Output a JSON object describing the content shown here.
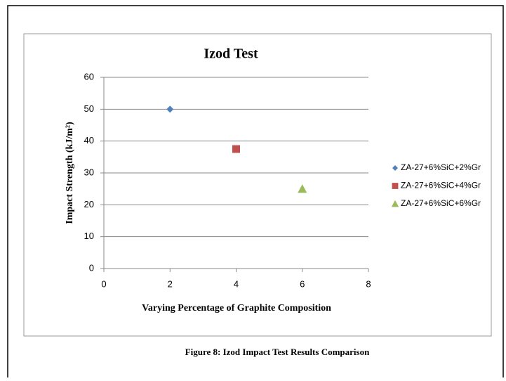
{
  "chart_data": {
    "type": "scatter",
    "title": "Izod Test",
    "xlabel": "Varying Percentage of Graphite Composition",
    "ylabel": "Impact Strength (kJ/m²)",
    "caption": "Figure 8: Izod Impact Test Results Comparison",
    "xlim": [
      0,
      8
    ],
    "xticks": [
      0,
      2,
      4,
      6,
      8
    ],
    "ylim": [
      0,
      60
    ],
    "yticks": [
      0,
      10,
      20,
      30,
      40,
      50,
      60
    ],
    "grid": true,
    "legend": "right",
    "series": [
      {
        "name": "ZA-27+6%SiC+2%Gr",
        "color": "#4f81bd",
        "marker": "diamond",
        "x": [
          2
        ],
        "values": [
          50
        ]
      },
      {
        "name": "ZA-27+6%SiC+4%Gr",
        "color": "#c0504d",
        "marker": "square",
        "x": [
          4
        ],
        "values": [
          37.5
        ]
      },
      {
        "name": "ZA-27+6%SiC+6%Gr",
        "color": "#9bbb59",
        "marker": "triangle",
        "x": [
          6
        ],
        "values": [
          25
        ]
      }
    ]
  }
}
